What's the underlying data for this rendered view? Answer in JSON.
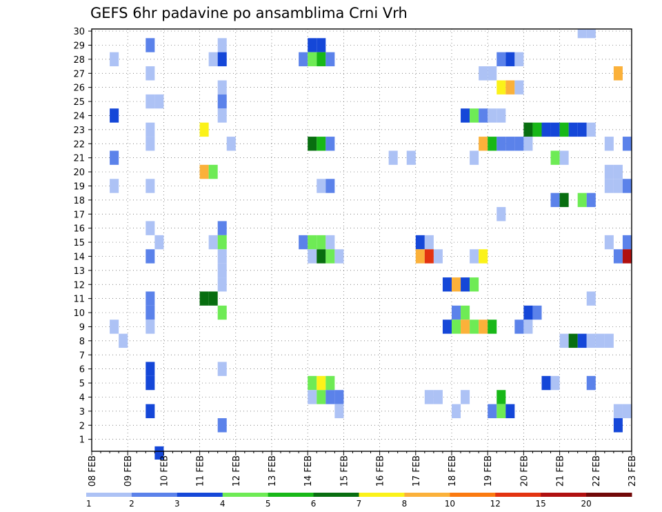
{
  "chart_data": {
    "type": "heatmap",
    "title": "GEFS 6hr padavine po ansamblima Crni Vrh",
    "xlabel": "",
    "ylabel": "",
    "x_ticks": [
      "08 FEB",
      "09 FEB",
      "10 FEB",
      "11 FEB",
      "12 FEB",
      "13 FEB",
      "14 FEB",
      "15 FEB",
      "16 FEB",
      "17 FEB",
      "18 FEB",
      "19 FEB",
      "20 FEB",
      "21 FEB",
      "22 FEB",
      "23 FEB"
    ],
    "y_ticks": [
      "1",
      "2",
      "3",
      "4",
      "5",
      "6",
      "7",
      "8",
      "9",
      "10",
      "11",
      "12",
      "13",
      "14",
      "15",
      "16",
      "17",
      "18",
      "19",
      "20",
      "21",
      "22",
      "23",
      "24",
      "25",
      "26",
      "27",
      "28",
      "29",
      "30"
    ],
    "xlim": [
      0,
      15
    ],
    "ylim": [
      0.15,
      30.15
    ],
    "time_step_days": 0.25,
    "legend": {
      "placement": "bottom",
      "bins": [
        {
          "label": "1",
          "color": "#adc2f5"
        },
        {
          "label": "2",
          "color": "#5b82ea"
        },
        {
          "label": "3",
          "color": "#1547d8"
        },
        {
          "label": "4",
          "color": "#6eeb55"
        },
        {
          "label": "5",
          "color": "#18b818"
        },
        {
          "label": "6",
          "color": "#086e10"
        },
        {
          "label": "7",
          "color": "#fbf219"
        },
        {
          "label": "8",
          "color": "#fbb13a"
        },
        {
          "label": "10",
          "color": "#fb7a10"
        },
        {
          "label": "12",
          "color": "#e33310"
        },
        {
          "label": "15",
          "color": "#b01010"
        },
        {
          "label": "20",
          "color": "#720808"
        }
      ]
    },
    "cells": [
      {
        "member": 30,
        "day": 13.5,
        "bin": 0
      },
      {
        "member": 30,
        "day": 13.75,
        "bin": 0
      },
      {
        "member": 29,
        "day": 1.5,
        "bin": 1
      },
      {
        "member": 29,
        "day": 3.5,
        "bin": 0
      },
      {
        "member": 29,
        "day": 6.0,
        "bin": 2
      },
      {
        "member": 29,
        "day": 6.25,
        "bin": 2
      },
      {
        "member": 28,
        "day": 0.5,
        "bin": 0
      },
      {
        "member": 28,
        "day": 3.25,
        "bin": 0
      },
      {
        "member": 28,
        "day": 3.5,
        "bin": 2
      },
      {
        "member": 28,
        "day": 5.75,
        "bin": 1
      },
      {
        "member": 28,
        "day": 6.0,
        "bin": 3
      },
      {
        "member": 28,
        "day": 6.25,
        "bin": 4
      },
      {
        "member": 28,
        "day": 6.5,
        "bin": 1
      },
      {
        "member": 28,
        "day": 11.25,
        "bin": 1
      },
      {
        "member": 28,
        "day": 11.5,
        "bin": 2
      },
      {
        "member": 28,
        "day": 11.75,
        "bin": 0
      },
      {
        "member": 27,
        "day": 1.5,
        "bin": 0
      },
      {
        "member": 27,
        "day": 10.75,
        "bin": 0
      },
      {
        "member": 27,
        "day": 11.0,
        "bin": 0
      },
      {
        "member": 27,
        "day": 14.5,
        "bin": 7
      },
      {
        "member": 26,
        "day": 3.5,
        "bin": 0
      },
      {
        "member": 26,
        "day": 11.25,
        "bin": 6
      },
      {
        "member": 26,
        "day": 11.5,
        "bin": 7
      },
      {
        "member": 26,
        "day": 11.75,
        "bin": 0
      },
      {
        "member": 25,
        "day": 1.5,
        "bin": 0
      },
      {
        "member": 25,
        "day": 1.75,
        "bin": 0
      },
      {
        "member": 25,
        "day": 3.5,
        "bin": 1
      },
      {
        "member": 24,
        "day": 0.5,
        "bin": 2
      },
      {
        "member": 24,
        "day": 3.5,
        "bin": 0
      },
      {
        "member": 24,
        "day": 10.25,
        "bin": 2
      },
      {
        "member": 24,
        "day": 10.5,
        "bin": 3
      },
      {
        "member": 24,
        "day": 10.75,
        "bin": 1
      },
      {
        "member": 24,
        "day": 11.0,
        "bin": 0
      },
      {
        "member": 24,
        "day": 11.25,
        "bin": 0
      },
      {
        "member": 23,
        "day": 1.5,
        "bin": 0
      },
      {
        "member": 23,
        "day": 3.0,
        "bin": 6
      },
      {
        "member": 23,
        "day": 12.0,
        "bin": 5
      },
      {
        "member": 23,
        "day": 12.25,
        "bin": 4
      },
      {
        "member": 23,
        "day": 12.5,
        "bin": 2
      },
      {
        "member": 23,
        "day": 12.75,
        "bin": 2
      },
      {
        "member": 23,
        "day": 13.0,
        "bin": 4
      },
      {
        "member": 23,
        "day": 13.25,
        "bin": 2
      },
      {
        "member": 23,
        "day": 13.5,
        "bin": 2
      },
      {
        "member": 23,
        "day": 13.75,
        "bin": 0
      },
      {
        "member": 22,
        "day": 1.5,
        "bin": 0
      },
      {
        "member": 22,
        "day": 3.75,
        "bin": 0
      },
      {
        "member": 22,
        "day": 6.0,
        "bin": 5
      },
      {
        "member": 22,
        "day": 6.25,
        "bin": 4
      },
      {
        "member": 22,
        "day": 6.5,
        "bin": 1
      },
      {
        "member": 22,
        "day": 10.75,
        "bin": 7
      },
      {
        "member": 22,
        "day": 11.0,
        "bin": 4
      },
      {
        "member": 22,
        "day": 11.25,
        "bin": 1
      },
      {
        "member": 22,
        "day": 11.5,
        "bin": 1
      },
      {
        "member": 22,
        "day": 11.75,
        "bin": 1
      },
      {
        "member": 22,
        "day": 12.0,
        "bin": 0
      },
      {
        "member": 22,
        "day": 14.25,
        "bin": 0
      },
      {
        "member": 22,
        "day": 14.75,
        "bin": 1
      },
      {
        "member": 21,
        "day": 0.5,
        "bin": 1
      },
      {
        "member": 21,
        "day": 8.25,
        "bin": 0
      },
      {
        "member": 21,
        "day": 8.75,
        "bin": 0
      },
      {
        "member": 21,
        "day": 10.5,
        "bin": 0
      },
      {
        "member": 21,
        "day": 12.75,
        "bin": 3
      },
      {
        "member": 21,
        "day": 13.0,
        "bin": 0
      },
      {
        "member": 20,
        "day": 3.0,
        "bin": 7
      },
      {
        "member": 20,
        "day": 3.25,
        "bin": 3
      },
      {
        "member": 20,
        "day": 14.25,
        "bin": 0
      },
      {
        "member": 20,
        "day": 14.5,
        "bin": 0
      },
      {
        "member": 19,
        "day": 0.5,
        "bin": 0
      },
      {
        "member": 19,
        "day": 1.5,
        "bin": 0
      },
      {
        "member": 19,
        "day": 6.25,
        "bin": 0
      },
      {
        "member": 19,
        "day": 6.5,
        "bin": 1
      },
      {
        "member": 19,
        "day": 14.25,
        "bin": 0
      },
      {
        "member": 19,
        "day": 14.5,
        "bin": 0
      },
      {
        "member": 19,
        "day": 14.75,
        "bin": 1
      },
      {
        "member": 18,
        "day": 12.75,
        "bin": 1
      },
      {
        "member": 18,
        "day": 13.0,
        "bin": 5
      },
      {
        "member": 18,
        "day": 13.5,
        "bin": 3
      },
      {
        "member": 18,
        "day": 13.75,
        "bin": 1
      },
      {
        "member": 17,
        "day": 11.25,
        "bin": 0
      },
      {
        "member": 16,
        "day": 1.5,
        "bin": 0
      },
      {
        "member": 16,
        "day": 3.5,
        "bin": 1
      },
      {
        "member": 15,
        "day": 1.75,
        "bin": 0
      },
      {
        "member": 15,
        "day": 3.25,
        "bin": 0
      },
      {
        "member": 15,
        "day": 3.5,
        "bin": 3
      },
      {
        "member": 15,
        "day": 5.75,
        "bin": 1
      },
      {
        "member": 15,
        "day": 6.0,
        "bin": 3
      },
      {
        "member": 15,
        "day": 6.25,
        "bin": 3
      },
      {
        "member": 15,
        "day": 6.5,
        "bin": 0
      },
      {
        "member": 15,
        "day": 9.0,
        "bin": 2
      },
      {
        "member": 15,
        "day": 9.25,
        "bin": 0
      },
      {
        "member": 15,
        "day": 14.25,
        "bin": 0
      },
      {
        "member": 15,
        "day": 14.75,
        "bin": 1
      },
      {
        "member": 14,
        "day": 1.5,
        "bin": 1
      },
      {
        "member": 14,
        "day": 3.5,
        "bin": 0
      },
      {
        "member": 14,
        "day": 6.0,
        "bin": 0
      },
      {
        "member": 14,
        "day": 6.25,
        "bin": 5
      },
      {
        "member": 14,
        "day": 6.5,
        "bin": 3
      },
      {
        "member": 14,
        "day": 6.75,
        "bin": 0
      },
      {
        "member": 14,
        "day": 9.0,
        "bin": 7
      },
      {
        "member": 14,
        "day": 9.25,
        "bin": 9
      },
      {
        "member": 14,
        "day": 9.5,
        "bin": 0
      },
      {
        "member": 14,
        "day": 10.5,
        "bin": 0
      },
      {
        "member": 14,
        "day": 10.75,
        "bin": 6
      },
      {
        "member": 14,
        "day": 14.5,
        "bin": 1
      },
      {
        "member": 14,
        "day": 14.75,
        "bin": 10
      },
      {
        "member": 13,
        "day": 3.5,
        "bin": 0
      },
      {
        "member": 12,
        "day": 3.5,
        "bin": 0
      },
      {
        "member": 12,
        "day": 9.75,
        "bin": 2
      },
      {
        "member": 12,
        "day": 10.0,
        "bin": 7
      },
      {
        "member": 12,
        "day": 10.25,
        "bin": 2
      },
      {
        "member": 12,
        "day": 10.5,
        "bin": 3
      },
      {
        "member": 11,
        "day": 1.5,
        "bin": 1
      },
      {
        "member": 11,
        "day": 3.0,
        "bin": 5
      },
      {
        "member": 11,
        "day": 3.25,
        "bin": 5
      },
      {
        "member": 11,
        "day": 13.75,
        "bin": 0
      },
      {
        "member": 10,
        "day": 1.5,
        "bin": 1
      },
      {
        "member": 10,
        "day": 3.5,
        "bin": 3
      },
      {
        "member": 10,
        "day": 10.0,
        "bin": 1
      },
      {
        "member": 10,
        "day": 10.25,
        "bin": 3
      },
      {
        "member": 10,
        "day": 12.0,
        "bin": 2
      },
      {
        "member": 10,
        "day": 12.25,
        "bin": 1
      },
      {
        "member": 9,
        "day": 0.5,
        "bin": 0
      },
      {
        "member": 9,
        "day": 1.5,
        "bin": 0
      },
      {
        "member": 9,
        "day": 9.75,
        "bin": 2
      },
      {
        "member": 9,
        "day": 10.0,
        "bin": 3
      },
      {
        "member": 9,
        "day": 10.25,
        "bin": 7
      },
      {
        "member": 9,
        "day": 10.5,
        "bin": 3
      },
      {
        "member": 9,
        "day": 10.75,
        "bin": 7
      },
      {
        "member": 9,
        "day": 11.0,
        "bin": 4
      },
      {
        "member": 9,
        "day": 11.75,
        "bin": 1
      },
      {
        "member": 9,
        "day": 12.0,
        "bin": 0
      },
      {
        "member": 8,
        "day": 0.75,
        "bin": 0
      },
      {
        "member": 8,
        "day": 13.0,
        "bin": 0
      },
      {
        "member": 8,
        "day": 13.25,
        "bin": 5
      },
      {
        "member": 8,
        "day": 13.5,
        "bin": 2
      },
      {
        "member": 8,
        "day": 13.75,
        "bin": 0
      },
      {
        "member": 8,
        "day": 14.0,
        "bin": 0
      },
      {
        "member": 8,
        "day": 14.25,
        "bin": 0
      },
      {
        "member": 6,
        "day": 1.5,
        "bin": 2
      },
      {
        "member": 6,
        "day": 3.5,
        "bin": 0
      },
      {
        "member": 5,
        "day": 1.5,
        "bin": 2
      },
      {
        "member": 5,
        "day": 6.0,
        "bin": 3
      },
      {
        "member": 5,
        "day": 6.25,
        "bin": 6
      },
      {
        "member": 5,
        "day": 6.5,
        "bin": 3
      },
      {
        "member": 5,
        "day": 12.5,
        "bin": 2
      },
      {
        "member": 5,
        "day": 12.75,
        "bin": 0
      },
      {
        "member": 5,
        "day": 13.75,
        "bin": 1
      },
      {
        "member": 4,
        "day": 6.0,
        "bin": 0
      },
      {
        "member": 4,
        "day": 6.25,
        "bin": 3
      },
      {
        "member": 4,
        "day": 6.5,
        "bin": 1
      },
      {
        "member": 4,
        "day": 6.75,
        "bin": 1
      },
      {
        "member": 4,
        "day": 9.25,
        "bin": 0
      },
      {
        "member": 4,
        "day": 9.5,
        "bin": 0
      },
      {
        "member": 4,
        "day": 10.25,
        "bin": 0
      },
      {
        "member": 4,
        "day": 11.25,
        "bin": 4
      },
      {
        "member": 3,
        "day": 1.5,
        "bin": 2
      },
      {
        "member": 3,
        "day": 6.75,
        "bin": 0
      },
      {
        "member": 3,
        "day": 10.0,
        "bin": 0
      },
      {
        "member": 3,
        "day": 11.0,
        "bin": 1
      },
      {
        "member": 3,
        "day": 11.25,
        "bin": 3
      },
      {
        "member": 3,
        "day": 11.5,
        "bin": 2
      },
      {
        "member": 3,
        "day": 14.5,
        "bin": 0
      },
      {
        "member": 3,
        "day": 14.75,
        "bin": 0
      },
      {
        "member": 2,
        "day": 3.5,
        "bin": 1
      },
      {
        "member": 2,
        "day": 14.5,
        "bin": 2
      },
      {
        "member": 0,
        "day": 1.75,
        "bin": 2
      }
    ]
  }
}
